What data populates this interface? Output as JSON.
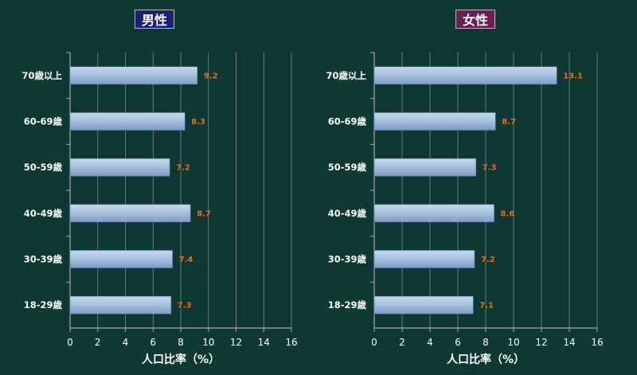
{
  "chart_data": [
    {
      "type": "bar",
      "orientation": "horizontal",
      "title": "男性",
      "title_color": "#1e1f72",
      "categories": [
        "70歳以上",
        "60-69歳",
        "50-59歳",
        "40-49歳",
        "30-39歳",
        "18-29歳"
      ],
      "values": [
        9.2,
        8.3,
        7.2,
        8.7,
        7.4,
        7.3
      ],
      "value_labels": [
        "9.2",
        "8.3",
        "7.2",
        "8.7",
        "7.4",
        "7.3"
      ],
      "xlabel": "人口比率（%）",
      "xlim": [
        0,
        16
      ],
      "xticks": [
        "0",
        "2",
        "4",
        "6",
        "8",
        "10",
        "12",
        "14",
        "16"
      ],
      "grid": "vertical"
    },
    {
      "type": "bar",
      "orientation": "horizontal",
      "title": "女性",
      "title_color": "#6e1b57",
      "categories": [
        "70歳以上",
        "60-69歳",
        "50-59歳",
        "40-49歳",
        "30-39歳",
        "18-29歳"
      ],
      "values": [
        13.1,
        8.7,
        7.3,
        8.6,
        7.2,
        7.1
      ],
      "value_labels": [
        "13.1",
        "8.7",
        "7.3",
        "8.6",
        "7.2",
        "7.1"
      ],
      "xlabel": "人口比率（%）",
      "xlim": [
        0,
        16
      ],
      "xticks": [
        "0",
        "2",
        "4",
        "6",
        "8",
        "10",
        "12",
        "14",
        "16"
      ],
      "grid": "vertical"
    }
  ],
  "colors": {
    "background": "#0e3832",
    "bar_light": "#c4d8ee",
    "bar_dark": "#7d9cc4",
    "value_label": "#f06a1e",
    "axis": "#a9a9a9",
    "text": "#ffffff"
  }
}
